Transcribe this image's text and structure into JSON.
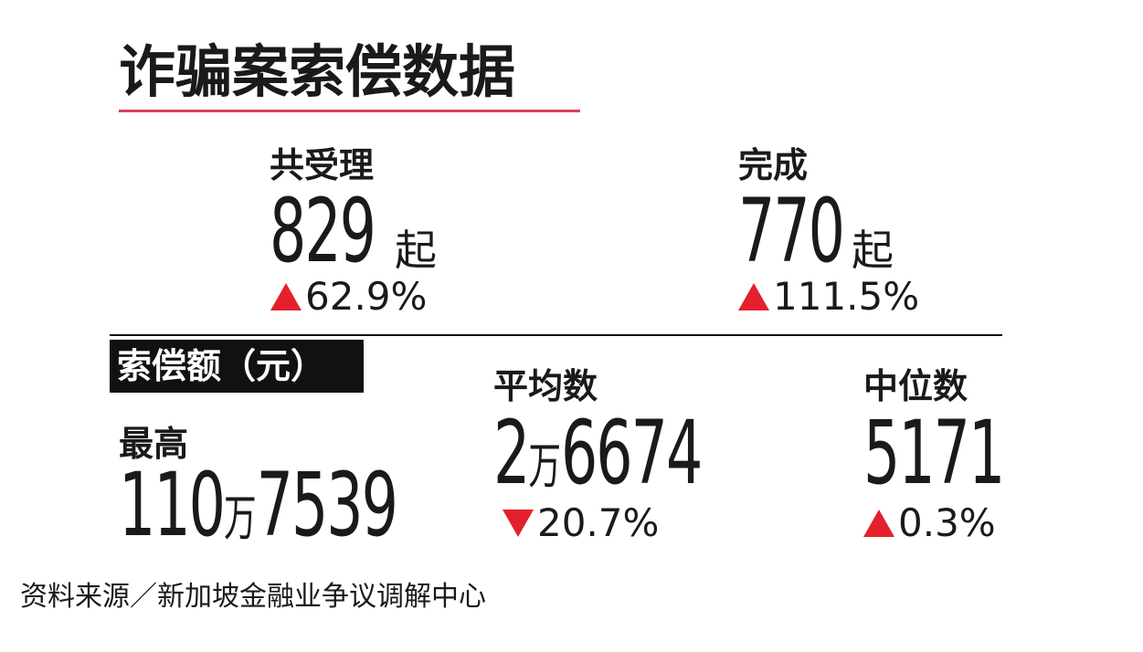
{
  "title": "诈骗案索偿数据",
  "cases": [
    {
      "label": "共受理",
      "number": "829",
      "unit": "起",
      "change": "62.9%"
    },
    {
      "label": "完成",
      "number": "770",
      "unit": "起",
      "change": "111.5%"
    }
  ],
  "claims": {
    "heading": "索偿额（元）",
    "highest": {
      "label": "最高",
      "parts": [
        "110",
        "万",
        "7539"
      ]
    },
    "average": {
      "label": "平均数",
      "parts": [
        "2",
        "万",
        "6674"
      ],
      "change": "20.7%"
    },
    "median": {
      "label": "中位数",
      "number": "5171",
      "change": "0.3%"
    }
  },
  "source": "资料来源／新加坡金融业争议调解中心"
}
